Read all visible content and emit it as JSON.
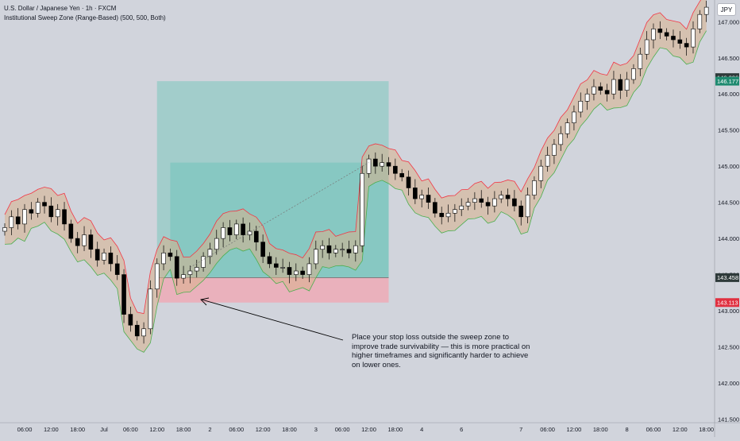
{
  "header": {
    "title": "U.S. Dollar / Japanese Yen · 1h · FXCM",
    "indicator": "Institutional Sweep Zone (Range-Based) (500, 500, Both)"
  },
  "currency_label": "JPY",
  "annotation": "Place your stop loss outside the sweep zone to improve trade survivability — this is more practical on higher timeframes and significantly harder to achieve on lower ones.",
  "colors": {
    "background": "#d1d4dc",
    "bull_candle": "#ffffff",
    "bear_candle": "#000000",
    "band_upper": "#f23645",
    "band_lower": "#4caf50",
    "band_fill": "#d8b08c",
    "target_zone": "#7cc6be",
    "stop_zone": "#f0a8b4",
    "price_tag_dark": "#2e3a3a",
    "price_tag_green": "#1f8a70",
    "price_tag_red": "#e03040"
  },
  "chart_data": {
    "type": "candlestick",
    "symbol": "USDJPY",
    "timeframe": "1h",
    "ylim": [
      141.45,
      147.3
    ],
    "y_ticks": [
      "141.500",
      "142.000",
      "142.500",
      "143.000",
      "143.500",
      "144.000",
      "144.500",
      "145.000",
      "145.500",
      "146.000",
      "146.500",
      "147.000"
    ],
    "x_ticks": [
      "06:00",
      "12:00",
      "18:00",
      "Jul",
      "06:00",
      "12:00",
      "18:00",
      "2",
      "06:00",
      "12:00",
      "18:00",
      "3",
      "06:00",
      "12:00",
      "18:00",
      "4",
      "6",
      "7",
      "06:00",
      "12:00",
      "18:00",
      "8",
      "06:00",
      "12:00",
      "18:00"
    ],
    "price_labels": [
      {
        "text": "146.226",
        "price": 146.226,
        "style": "dark"
      },
      {
        "text": "146.177",
        "price": 146.177,
        "style": "green"
      },
      {
        "text": "143.458",
        "price": 143.458,
        "style": "dark"
      },
      {
        "text": "143.113",
        "price": 143.113,
        "style": "red"
      }
    ],
    "position_tool": {
      "x_range_index": [
        23,
        58
      ],
      "entry": 143.458,
      "stop": 143.113,
      "target": 146.177,
      "inner_top": 145.05,
      "inner_x_start_index": 25
    },
    "closes": [
      144.15,
      144.3,
      144.2,
      144.4,
      144.35,
      144.5,
      144.45,
      144.3,
      144.4,
      144.2,
      144.0,
      143.9,
      144.05,
      143.85,
      143.7,
      143.8,
      143.65,
      143.5,
      142.95,
      142.8,
      142.65,
      142.75,
      143.3,
      143.65,
      143.8,
      143.75,
      143.45,
      143.5,
      143.55,
      143.6,
      143.75,
      143.85,
      144.0,
      144.15,
      144.05,
      144.2,
      144.05,
      144.1,
      143.95,
      143.75,
      143.65,
      143.6,
      143.6,
      143.5,
      143.55,
      143.5,
      143.65,
      143.85,
      143.9,
      143.8,
      143.85,
      143.85,
      143.8,
      143.9,
      144.9,
      145.1,
      145.0,
      145.05,
      145.0,
      144.9,
      144.85,
      144.7,
      144.55,
      144.6,
      144.5,
      144.35,
      144.3,
      144.35,
      144.4,
      144.45,
      144.5,
      144.55,
      144.5,
      144.45,
      144.55,
      144.6,
      144.55,
      144.45,
      144.3,
      144.6,
      144.8,
      145.0,
      145.15,
      145.3,
      145.45,
      145.6,
      145.75,
      145.9,
      146.0,
      146.1,
      146.05,
      146.0,
      146.2,
      146.05,
      146.2,
      146.35,
      146.55,
      146.75,
      146.9,
      146.85,
      146.8,
      146.75,
      146.7,
      146.65,
      146.9,
      147.1,
      147.2
    ]
  }
}
